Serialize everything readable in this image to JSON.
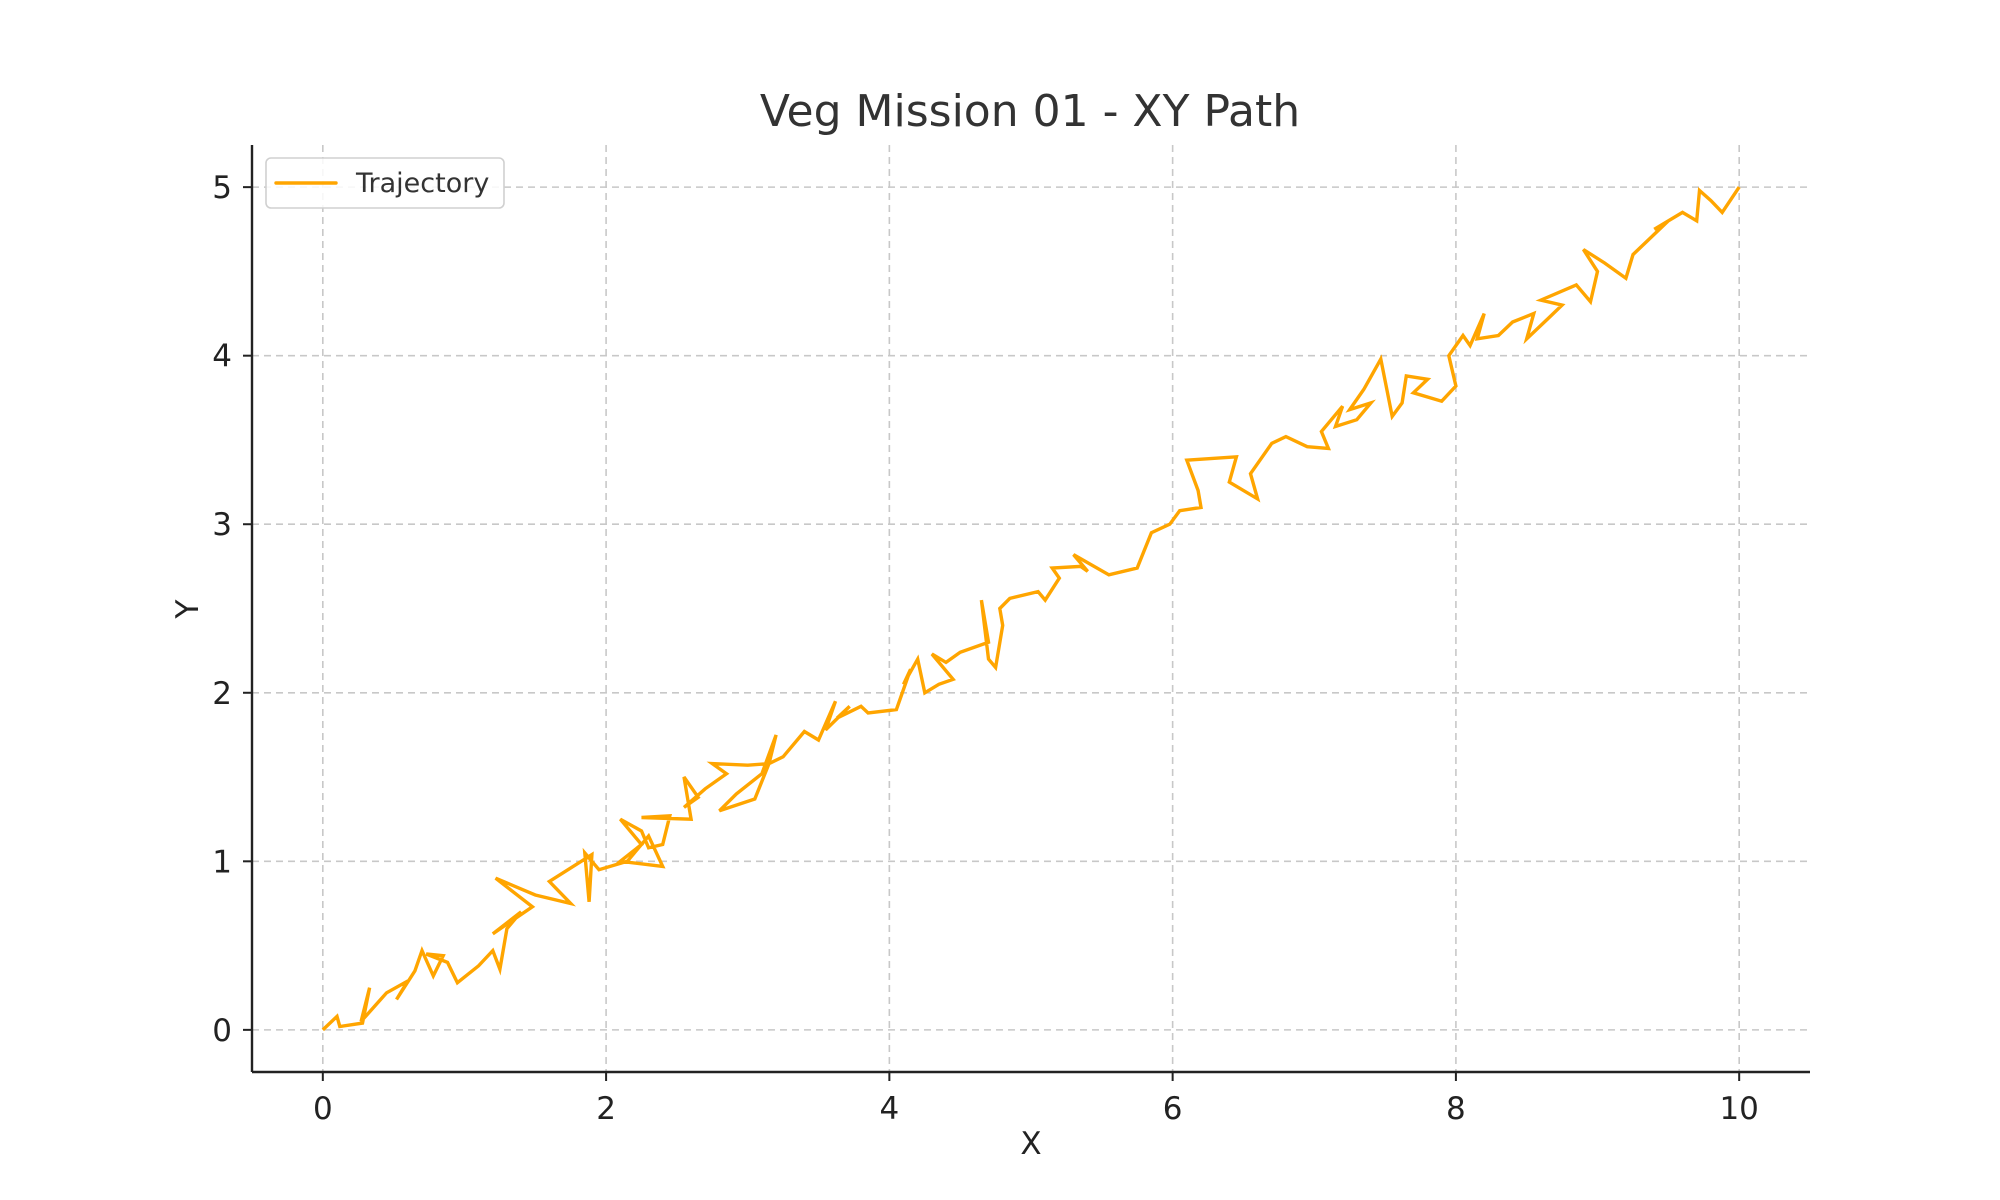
{
  "chart_data": {
    "type": "line",
    "title": "Veg Mission 01 - XY Path",
    "xlabel": "X",
    "ylabel": "Y",
    "xlim": [
      -0.5,
      10.5
    ],
    "ylim": [
      -0.25,
      5.25
    ],
    "xticks": [
      0,
      2,
      4,
      6,
      8,
      10
    ],
    "yticks": [
      0,
      1,
      2,
      3,
      4,
      5
    ],
    "xtick_labels": [
      "0",
      "2",
      "4",
      "6",
      "8",
      "10"
    ],
    "ytick_labels": [
      "0",
      "1",
      "2",
      "3",
      "4",
      "5"
    ],
    "grid": true,
    "legend": {
      "position": "top-left"
    },
    "series": [
      {
        "name": "Trajectory",
        "color": "#FFA500",
        "points": [
          [
            0.0,
            0.0
          ],
          [
            0.1,
            0.08
          ],
          [
            0.12,
            0.02
          ],
          [
            0.28,
            0.04
          ],
          [
            0.33,
            0.25
          ],
          [
            0.27,
            0.05
          ],
          [
            0.45,
            0.22
          ],
          [
            0.6,
            0.29
          ],
          [
            0.52,
            0.18
          ],
          [
            0.65,
            0.35
          ],
          [
            0.7,
            0.47
          ],
          [
            0.78,
            0.32
          ],
          [
            0.85,
            0.44
          ],
          [
            0.73,
            0.45
          ],
          [
            0.88,
            0.4
          ],
          [
            0.95,
            0.28
          ],
          [
            1.1,
            0.38
          ],
          [
            1.2,
            0.47
          ],
          [
            1.25,
            0.36
          ],
          [
            1.3,
            0.6
          ],
          [
            1.4,
            0.7
          ],
          [
            1.2,
            0.57
          ],
          [
            1.48,
            0.73
          ],
          [
            1.22,
            0.9
          ],
          [
            1.5,
            0.8
          ],
          [
            1.75,
            0.75
          ],
          [
            1.6,
            0.88
          ],
          [
            1.9,
            1.04
          ],
          [
            1.88,
            0.76
          ],
          [
            1.85,
            1.05
          ],
          [
            1.95,
            0.95
          ],
          [
            2.15,
            1.0
          ],
          [
            2.3,
            1.15
          ],
          [
            2.4,
            0.97
          ],
          [
            2.1,
            1.0
          ],
          [
            2.25,
            1.1
          ],
          [
            2.1,
            1.25
          ],
          [
            2.25,
            1.18
          ],
          [
            2.3,
            1.08
          ],
          [
            2.4,
            1.1
          ],
          [
            2.45,
            1.27
          ],
          [
            2.25,
            1.26
          ],
          [
            2.6,
            1.25
          ],
          [
            2.55,
            1.5
          ],
          [
            2.65,
            1.38
          ],
          [
            2.55,
            1.32
          ],
          [
            2.7,
            1.43
          ],
          [
            2.85,
            1.52
          ],
          [
            2.75,
            1.58
          ],
          [
            3.0,
            1.57
          ],
          [
            3.15,
            1.58
          ],
          [
            3.05,
            1.37
          ],
          [
            2.8,
            1.3
          ],
          [
            2.92,
            1.4
          ],
          [
            3.1,
            1.52
          ],
          [
            3.2,
            1.75
          ],
          [
            3.15,
            1.58
          ],
          [
            3.25,
            1.62
          ],
          [
            3.4,
            1.77
          ],
          [
            3.5,
            1.72
          ],
          [
            3.62,
            1.95
          ],
          [
            3.55,
            1.78
          ],
          [
            3.72,
            1.92
          ],
          [
            3.63,
            1.85
          ],
          [
            3.8,
            1.92
          ],
          [
            3.85,
            1.88
          ],
          [
            4.05,
            1.9
          ],
          [
            4.15,
            2.14
          ],
          [
            4.1,
            2.05
          ],
          [
            4.2,
            2.2
          ],
          [
            4.25,
            2.0
          ],
          [
            4.35,
            2.05
          ],
          [
            4.45,
            2.08
          ],
          [
            4.3,
            2.23
          ],
          [
            4.4,
            2.18
          ],
          [
            4.5,
            2.24
          ],
          [
            4.7,
            2.3
          ],
          [
            4.65,
            2.55
          ],
          [
            4.7,
            2.2
          ],
          [
            4.75,
            2.15
          ],
          [
            4.8,
            2.4
          ],
          [
            4.78,
            2.5
          ],
          [
            4.85,
            2.56
          ],
          [
            5.05,
            2.6
          ],
          [
            5.1,
            2.55
          ],
          [
            5.2,
            2.68
          ],
          [
            5.15,
            2.74
          ],
          [
            5.35,
            2.75
          ],
          [
            5.4,
            2.72
          ],
          [
            5.3,
            2.82
          ],
          [
            5.55,
            2.7
          ],
          [
            5.75,
            2.74
          ],
          [
            5.85,
            2.95
          ],
          [
            5.98,
            3.0
          ],
          [
            6.05,
            3.08
          ],
          [
            6.2,
            3.1
          ],
          [
            6.18,
            3.2
          ],
          [
            6.1,
            3.38
          ],
          [
            6.45,
            3.4
          ],
          [
            6.4,
            3.25
          ],
          [
            6.6,
            3.15
          ],
          [
            6.55,
            3.3
          ],
          [
            6.7,
            3.48
          ],
          [
            6.8,
            3.52
          ],
          [
            6.95,
            3.46
          ],
          [
            7.1,
            3.45
          ],
          [
            7.05,
            3.55
          ],
          [
            7.2,
            3.7
          ],
          [
            7.15,
            3.58
          ],
          [
            7.3,
            3.62
          ],
          [
            7.4,
            3.72
          ],
          [
            7.25,
            3.68
          ],
          [
            7.35,
            3.8
          ],
          [
            7.47,
            3.98
          ],
          [
            7.55,
            3.64
          ],
          [
            7.62,
            3.72
          ],
          [
            7.65,
            3.88
          ],
          [
            7.8,
            3.86
          ],
          [
            7.7,
            3.78
          ],
          [
            7.9,
            3.73
          ],
          [
            8.0,
            3.82
          ],
          [
            7.95,
            4.0
          ],
          [
            8.05,
            4.12
          ],
          [
            8.1,
            4.06
          ],
          [
            8.2,
            4.25
          ],
          [
            8.15,
            4.1
          ],
          [
            8.3,
            4.12
          ],
          [
            8.4,
            4.2
          ],
          [
            8.55,
            4.25
          ],
          [
            8.5,
            4.1
          ],
          [
            8.65,
            4.22
          ],
          [
            8.75,
            4.3
          ],
          [
            8.6,
            4.33
          ],
          [
            8.85,
            4.42
          ],
          [
            8.95,
            4.32
          ],
          [
            9.0,
            4.5
          ],
          [
            8.9,
            4.63
          ],
          [
            9.05,
            4.55
          ],
          [
            9.2,
            4.46
          ],
          [
            9.25,
            4.6
          ],
          [
            9.35,
            4.68
          ],
          [
            9.5,
            4.8
          ],
          [
            9.4,
            4.75
          ],
          [
            9.6,
            4.85
          ],
          [
            9.7,
            4.8
          ],
          [
            9.72,
            4.98
          ],
          [
            9.8,
            4.92
          ],
          [
            9.88,
            4.85
          ],
          [
            10.0,
            5.0
          ]
        ]
      }
    ]
  }
}
